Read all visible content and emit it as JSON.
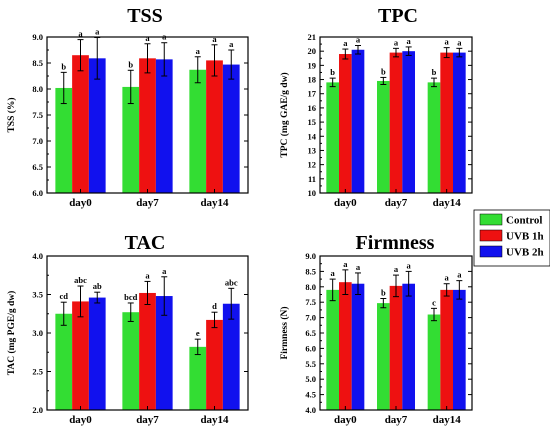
{
  "colors": {
    "Control": "#33dd33",
    "UVB 1h": "#ee1111",
    "UVB 2h": "#1111ee",
    "axis": "#000000"
  },
  "legend": {
    "placement": "center-right",
    "items": [
      "Control",
      "UVB 1h",
      "UVB 2h"
    ]
  },
  "chart_data": [
    {
      "type": "bar",
      "title": "TSS",
      "ylabel": "TSS (%)",
      "xlabel": "",
      "ylim": [
        6.0,
        9.0
      ],
      "yticks": [
        "6.0",
        "6.5",
        "7.0",
        "7.5",
        "8.0",
        "8.5",
        "9.0"
      ],
      "categories": [
        "day0",
        "day7",
        "day14"
      ],
      "series": [
        {
          "name": "Control",
          "values": [
            8.02,
            8.04,
            8.37
          ],
          "errors": [
            0.3,
            0.32,
            0.25
          ],
          "letters": [
            "b",
            "b",
            "a"
          ]
        },
        {
          "name": "UVB 1h",
          "values": [
            8.65,
            8.59,
            8.55
          ],
          "errors": [
            0.3,
            0.28,
            0.3
          ],
          "letters": [
            "a",
            "a",
            "a"
          ]
        },
        {
          "name": "UVB 2h",
          "values": [
            8.59,
            8.57,
            8.47
          ],
          "errors": [
            0.4,
            0.32,
            0.28
          ],
          "letters": [
            "a",
            "a",
            "a"
          ]
        }
      ]
    },
    {
      "type": "bar",
      "title": "TPC",
      "ylabel": "TPC (mg GAE/g dw)",
      "xlabel": "",
      "ylim": [
        10,
        21
      ],
      "yticks": [
        "10",
        "11",
        "12",
        "13",
        "14",
        "15",
        "16",
        "17",
        "18",
        "19",
        "20",
        "21"
      ],
      "categories": [
        "day0",
        "day7",
        "day14"
      ],
      "series": [
        {
          "name": "Control",
          "values": [
            17.8,
            17.9,
            17.8
          ],
          "errors": [
            0.3,
            0.25,
            0.3
          ],
          "letters": [
            "b",
            "b",
            "b"
          ]
        },
        {
          "name": "UVB 1h",
          "values": [
            19.8,
            19.9,
            19.9
          ],
          "errors": [
            0.35,
            0.3,
            0.35
          ],
          "letters": [
            "a",
            "a",
            "a"
          ]
        },
        {
          "name": "UVB 2h",
          "values": [
            20.1,
            20.0,
            19.9
          ],
          "errors": [
            0.3,
            0.3,
            0.3
          ],
          "letters": [
            "a",
            "a",
            "a"
          ]
        }
      ]
    },
    {
      "type": "bar",
      "title": "TAC",
      "ylabel": "TAC (mg PGE/g dw)",
      "xlabel": "",
      "ylim": [
        2.0,
        4.0
      ],
      "yticks": [
        "2.0",
        "2.5",
        "3.0",
        "3.5",
        "4.0"
      ],
      "categories": [
        "day0",
        "day7",
        "day14"
      ],
      "series": [
        {
          "name": "Control",
          "values": [
            3.25,
            3.27,
            2.82
          ],
          "errors": [
            0.15,
            0.12,
            0.1
          ],
          "letters": [
            "cd",
            "bcd",
            "e"
          ]
        },
        {
          "name": "UVB 1h",
          "values": [
            3.41,
            3.52,
            3.17
          ],
          "errors": [
            0.2,
            0.15,
            0.1
          ],
          "letters": [
            "abc",
            "a",
            "d"
          ]
        },
        {
          "name": "UVB 2h",
          "values": [
            3.46,
            3.48,
            3.38
          ],
          "errors": [
            0.07,
            0.25,
            0.2
          ],
          "letters": [
            "ab",
            "a",
            "abc"
          ]
        }
      ]
    },
    {
      "type": "bar",
      "title": "Firmness",
      "ylabel": "Firmness (N)",
      "xlabel": "",
      "ylim": [
        4.0,
        9.0
      ],
      "yticks": [
        "4.0",
        "4.5",
        "5.0",
        "5.5",
        "6.0",
        "6.5",
        "7.0",
        "7.5",
        "8.0",
        "8.5",
        "9.0"
      ],
      "categories": [
        "day0",
        "day7",
        "day14"
      ],
      "series": [
        {
          "name": "Control",
          "values": [
            7.9,
            7.47,
            7.1
          ],
          "errors": [
            0.35,
            0.15,
            0.2
          ],
          "letters": [
            "a",
            "b",
            "c"
          ]
        },
        {
          "name": "UVB 1h",
          "values": [
            8.15,
            8.03,
            7.9
          ],
          "errors": [
            0.4,
            0.35,
            0.2
          ],
          "letters": [
            "a",
            "a",
            "a"
          ]
        },
        {
          "name": "UVB 2h",
          "values": [
            8.1,
            8.1,
            7.9
          ],
          "errors": [
            0.35,
            0.4,
            0.3
          ],
          "letters": [
            "a",
            "a",
            "a"
          ]
        }
      ]
    }
  ]
}
